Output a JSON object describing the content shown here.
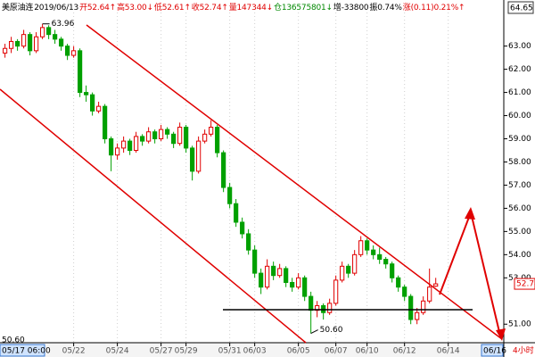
{
  "chart_data": {
    "type": "candlestick",
    "header": [
      {
        "text": "美原油连",
        "color": "#000000"
      },
      {
        "text": "2019/06/13",
        "color": "#000000"
      },
      {
        "text": "开52.64↑",
        "color": "#e00000"
      },
      {
        "text": "高53.00↓",
        "color": "#e00000"
      },
      {
        "text": "低52.61↑",
        "color": "#e00000"
      },
      {
        "text": "收52.74↑",
        "color": "#e00000"
      },
      {
        "text": "量147344↓",
        "color": "#e00000"
      },
      {
        "text": "仓136575801↓",
        "color": "#008800"
      },
      {
        "text": "增-33800",
        "color": "#000000"
      },
      {
        "text": "振0.74%",
        "color": "#000000"
      },
      {
        "text": "涨(0.11)0.21%↑",
        "color": "#e00000"
      }
    ],
    "y_top_label": "64.65",
    "last_price": {
      "value": 52.74,
      "label": "52.74"
    },
    "cursor_y_label": "50.60",
    "cursor_x_label": "05/17 06:00",
    "range_end_label": "06/16",
    "period_label": "4小时",
    "annotations": [
      {
        "index": 6,
        "value": 63.96,
        "label": "63.96",
        "at": "high"
      },
      {
        "index": 49,
        "value": 50.6,
        "label": "50.60",
        "at": "low"
      }
    ],
    "up_color": "#e00000",
    "down_color": "#00a000",
    "open": [
      62.7,
      62.9,
      63.2,
      63.0,
      63.5,
      62.8,
      63.4,
      63.8,
      63.5,
      63.3,
      63.0,
      62.6,
      62.8,
      61.0,
      60.9,
      60.2,
      60.4,
      59.0,
      58.3,
      58.6,
      58.9,
      58.5,
      59.1,
      58.9,
      59.3,
      59.0,
      59.4,
      59.2,
      58.8,
      59.5,
      58.6,
      57.6,
      58.9,
      59.2,
      59.5,
      58.4,
      56.9,
      56.2,
      55.4,
      54.9,
      54.2,
      53.2,
      52.6,
      53.5,
      53.1,
      53.4,
      52.8,
      52.6,
      53.0,
      52.2,
      51.6,
      51.8,
      51.5,
      51.9,
      52.9,
      53.5,
      53.2,
      54.0,
      54.6,
      54.2,
      54.0,
      53.8,
      53.6,
      53.0,
      52.6,
      52.2,
      51.2,
      51.5,
      52.0,
      52.64
    ],
    "high": [
      63.1,
      63.4,
      63.3,
      63.7,
      63.6,
      63.6,
      63.96,
      63.9,
      63.7,
      63.4,
      63.1,
      63.0,
      62.9,
      61.3,
      61.0,
      60.6,
      60.5,
      59.1,
      58.8,
      59.1,
      59.0,
      59.3,
      59.2,
      59.5,
      59.4,
      59.6,
      59.5,
      59.3,
      59.7,
      59.6,
      58.7,
      59.1,
      59.4,
      59.8,
      59.6,
      58.5,
      57.1,
      56.4,
      55.6,
      55.1,
      54.4,
      53.4,
      53.8,
      53.7,
      53.6,
      53.5,
      53.0,
      53.2,
      53.1,
      52.4,
      52.0,
      51.9,
      52.1,
      53.1,
      53.7,
      53.6,
      54.2,
      54.8,
      54.7,
      54.4,
      54.3,
      53.9,
      53.7,
      53.1,
      52.7,
      52.3,
      51.7,
      52.2,
      53.4,
      53.0
    ],
    "low": [
      62.5,
      62.7,
      62.8,
      62.9,
      62.6,
      62.7,
      63.3,
      63.3,
      63.1,
      62.8,
      62.4,
      62.5,
      60.8,
      60.6,
      60.0,
      60.1,
      58.8,
      57.6,
      58.1,
      58.4,
      58.3,
      58.4,
      58.7,
      58.8,
      58.8,
      58.9,
      59.0,
      58.6,
      58.7,
      58.4,
      57.2,
      57.5,
      58.8,
      59.1,
      58.2,
      56.7,
      56.0,
      55.2,
      54.7,
      54.0,
      53.0,
      52.3,
      52.5,
      52.9,
      53.0,
      52.6,
      52.4,
      52.5,
      52.0,
      50.6,
      51.3,
      51.2,
      51.4,
      51.8,
      52.8,
      53.0,
      53.1,
      53.9,
      54.0,
      53.8,
      53.6,
      53.4,
      52.8,
      52.4,
      52.0,
      51.0,
      51.0,
      51.4,
      51.9,
      52.61
    ],
    "close": [
      62.9,
      63.2,
      63.0,
      63.5,
      62.8,
      63.4,
      63.8,
      63.5,
      63.3,
      63.0,
      62.6,
      62.8,
      61.0,
      60.9,
      60.2,
      60.4,
      59.0,
      58.3,
      58.6,
      58.9,
      58.5,
      59.1,
      58.9,
      59.3,
      59.0,
      59.4,
      59.2,
      58.8,
      59.5,
      58.6,
      57.6,
      58.9,
      59.2,
      59.5,
      58.4,
      56.9,
      56.2,
      55.4,
      54.9,
      54.2,
      53.2,
      52.6,
      53.5,
      53.1,
      53.4,
      52.8,
      52.6,
      53.0,
      52.2,
      51.6,
      51.8,
      51.5,
      51.9,
      52.9,
      53.5,
      53.2,
      54.0,
      54.6,
      54.2,
      54.0,
      53.8,
      53.6,
      53.0,
      52.6,
      52.2,
      51.2,
      51.5,
      52.0,
      52.6,
      52.74
    ],
    "xlim": [
      -0.8,
      79.9
    ],
    "xticks": [
      {
        "value": 11,
        "label": "05/22"
      },
      {
        "value": 18,
        "label": "05/24"
      },
      {
        "value": 25,
        "label": "05/27"
      },
      {
        "value": 29,
        "label": "05/29"
      },
      {
        "value": 36,
        "label": "05/31"
      },
      {
        "value": 40,
        "label": "06/03"
      },
      {
        "value": 47,
        "label": "06/05"
      },
      {
        "value": 53,
        "label": "06/07"
      },
      {
        "value": 58,
        "label": "06/10"
      },
      {
        "value": 64,
        "label": "06/12"
      },
      {
        "value": 71,
        "label": "06/14"
      }
    ],
    "ylim": [
      50.2,
      64.45
    ],
    "yticks": [
      {
        "value": 51,
        "label": "51.00"
      },
      {
        "value": 53,
        "label": "53.00"
      },
      {
        "value": 54,
        "label": "54.00"
      },
      {
        "value": 55,
        "label": "55.00"
      },
      {
        "value": 56,
        "label": "56.00"
      },
      {
        "value": 57,
        "label": "57.00"
      },
      {
        "value": 58,
        "label": "58.00"
      },
      {
        "value": 59,
        "label": "59.00"
      },
      {
        "value": 60,
        "label": "60.00"
      },
      {
        "value": 61,
        "label": "61.00"
      },
      {
        "value": 62,
        "label": "62.00"
      },
      {
        "value": 63,
        "label": "63.00"
      }
    ],
    "grid": true
  }
}
